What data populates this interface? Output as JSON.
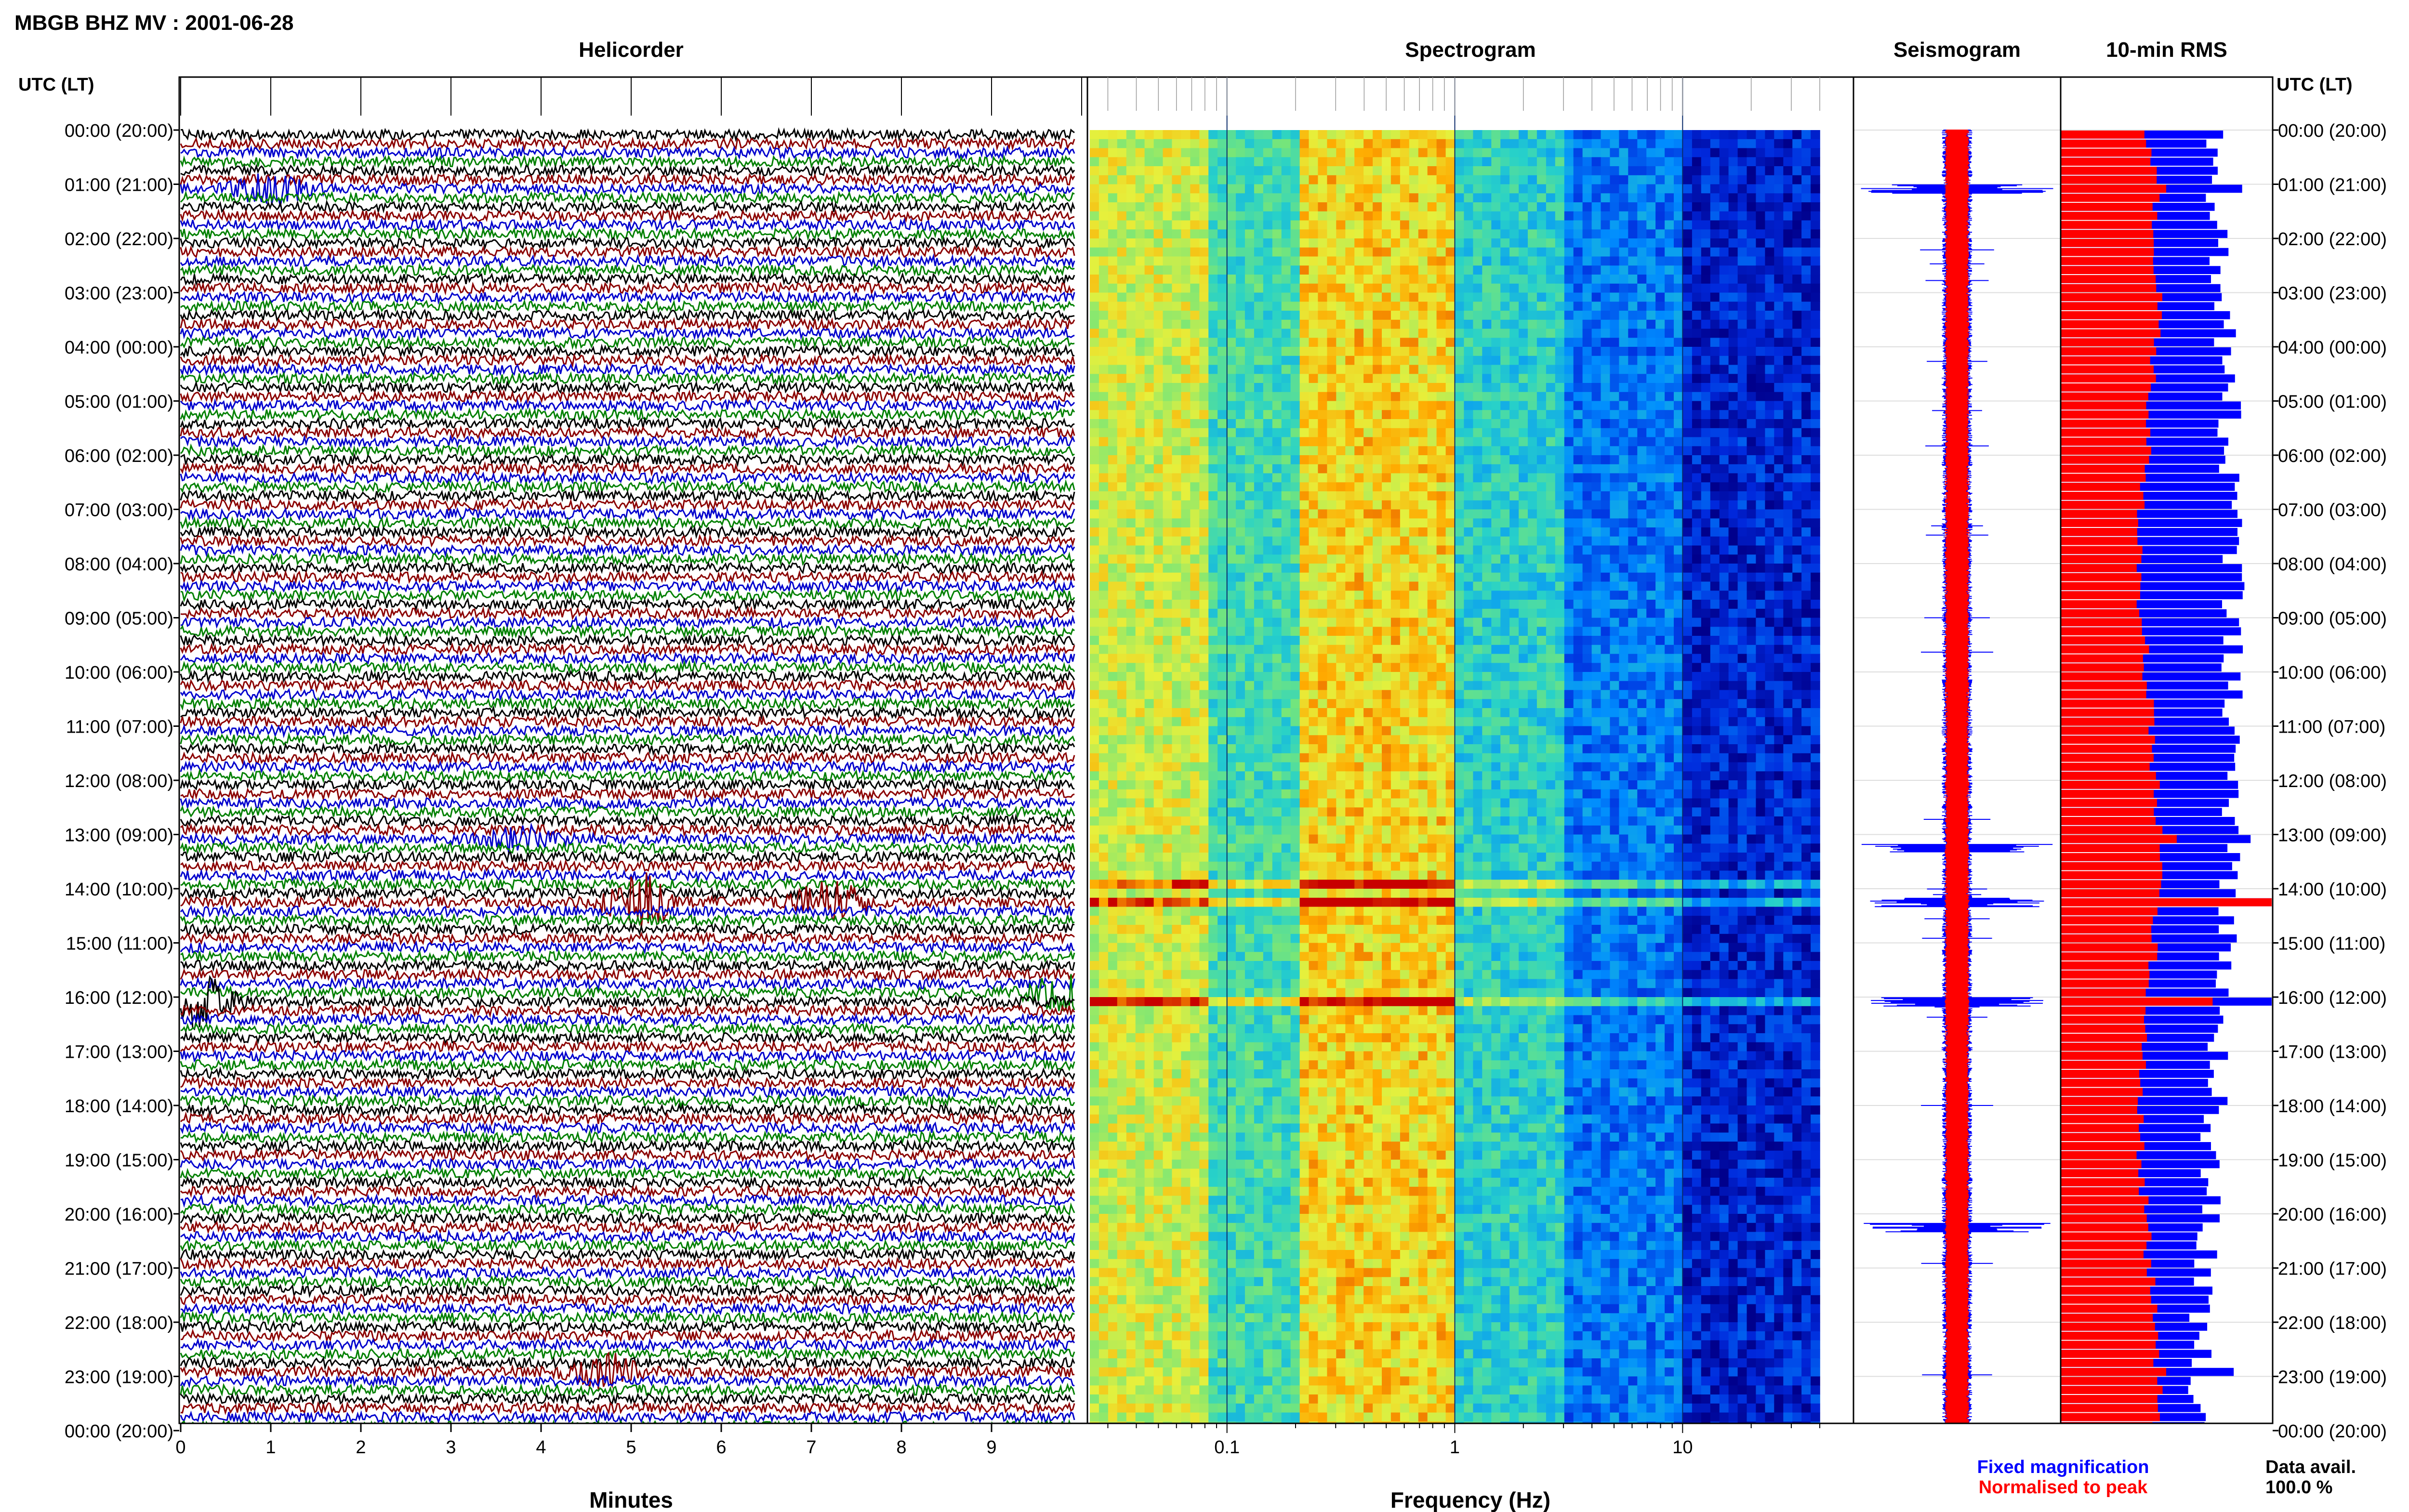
{
  "page_title": "MBGB BHZ MV : 2001-06-28",
  "panels": {
    "helicorder": "Helicorder",
    "spectrogram": "Spectrogram",
    "seismogram": "Seismogram",
    "rms": "10-min RMS"
  },
  "time_axis_header": "UTC (LT)",
  "hour_labels": [
    "00:00 (20:00)",
    "01:00 (21:00)",
    "02:00 (22:00)",
    "03:00 (23:00)",
    "04:00 (00:00)",
    "05:00 (01:00)",
    "06:00 (02:00)",
    "07:00 (03:00)",
    "08:00 (04:00)",
    "09:00 (05:00)",
    "10:00 (06:00)",
    "11:00 (07:00)",
    "12:00 (08:00)",
    "13:00 (09:00)",
    "14:00 (10:00)",
    "15:00 (11:00)",
    "16:00 (12:00)",
    "17:00 (13:00)",
    "18:00 (14:00)",
    "19:00 (15:00)",
    "20:00 (16:00)",
    "21:00 (17:00)",
    "22:00 (18:00)",
    "23:00 (19:00)",
    "00:00 (20:00)"
  ],
  "helicorder_axis": {
    "xlabel": "Minutes",
    "ticks": [
      "0",
      "1",
      "2",
      "3",
      "4",
      "5",
      "6",
      "7",
      "8",
      "9"
    ],
    "xlim": [
      0,
      10
    ]
  },
  "spectrogram_axis": {
    "xlabel": "Frequency (Hz)",
    "ticks": [
      "0.1",
      "1",
      "10"
    ],
    "scale": "log",
    "xlim": [
      0.025,
      40
    ]
  },
  "legend": {
    "fixed": "Fixed magnification",
    "normalised": "Normalised to peak",
    "fixed_color": "#0000ff",
    "normalised_color": "#ff0000"
  },
  "data_avail": {
    "label": "Data avail.",
    "value": "100.0 %"
  },
  "colors": {
    "helicorder_traces": [
      "#000000",
      "#8b0000",
      "#0000cd",
      "#008000"
    ]
  },
  "chart_data": [
    {
      "type": "line",
      "title": "Helicorder",
      "xlabel": "Minutes",
      "xlim": [
        0,
        10
      ],
      "rows": 144,
      "rows_per_hour": 6,
      "events": [
        {
          "row": 85,
          "minute": 5.1,
          "amplitude": 3.0
        },
        {
          "row": 85,
          "minute": 7.2,
          "amplitude": 2.2
        },
        {
          "row": 96,
          "minute": 0.2,
          "amplitude": 2.6
        },
        {
          "row": 95,
          "minute": 9.8,
          "amplitude": 2.0
        },
        {
          "row": 137,
          "minute": 4.7,
          "amplitude": 1.8
        },
        {
          "row": 6,
          "minute": 1.0,
          "amplitude": 1.6
        },
        {
          "row": 78,
          "minute": 3.7,
          "amplitude": 1.4
        }
      ]
    },
    {
      "type": "heatmap",
      "title": "Spectrogram",
      "xlabel": "Frequency (Hz)",
      "xscale": "log",
      "xlim": [
        0.025,
        40
      ],
      "rows": 144,
      "bands": [
        {
          "from_hz": 0.025,
          "to_hz": 0.08,
          "level": 0.72
        },
        {
          "from_hz": 0.08,
          "to_hz": 0.2,
          "level": 0.5
        },
        {
          "from_hz": 0.2,
          "to_hz": 1.0,
          "level": 0.8
        },
        {
          "from_hz": 1.0,
          "to_hz": 3.0,
          "level": 0.45
        },
        {
          "from_hz": 3.0,
          "to_hz": 10.0,
          "level": 0.25
        },
        {
          "from_hz": 10.0,
          "to_hz": 40.0,
          "level": 0.1
        }
      ],
      "event_rows": [
        85,
        96,
        83
      ]
    },
    {
      "type": "line",
      "title": "Seismogram",
      "rows": 144,
      "series": [
        {
          "name": "Fixed magnification",
          "color": "#0000ff"
        },
        {
          "name": "Normalised to peak",
          "color": "#ff0000"
        }
      ],
      "event_rows": [
        85,
        96,
        6,
        79,
        121
      ]
    },
    {
      "type": "bar",
      "title": "10-min RMS",
      "rows": 144,
      "series": [
        {
          "name": "Fixed magnification",
          "color": "#0000ff",
          "base": 0.72,
          "spikes": [
            {
              "row": 85,
              "value": 1.0
            },
            {
              "row": 96,
              "value": 1.0
            },
            {
              "row": 78,
              "value": 0.9
            },
            {
              "row": 137,
              "value": 0.82
            },
            {
              "row": 6,
              "value": 0.86
            }
          ]
        },
        {
          "name": "Normalised to peak",
          "color": "#ff0000",
          "base": 0.42,
          "spikes": [
            {
              "row": 85,
              "value": 1.0
            },
            {
              "row": 96,
              "value": 0.72
            },
            {
              "row": 78,
              "value": 0.55
            },
            {
              "row": 137,
              "value": 0.5
            },
            {
              "row": 6,
              "value": 0.5
            }
          ]
        }
      ]
    }
  ]
}
